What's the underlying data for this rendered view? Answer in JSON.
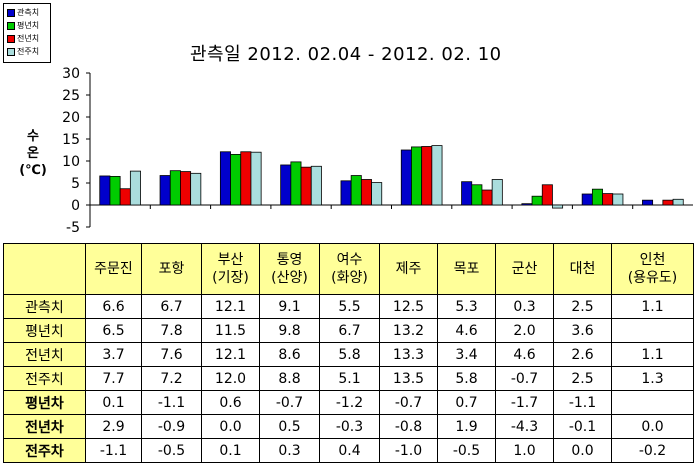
{
  "legend": [
    {
      "name": "관측치",
      "color": "#0000cc"
    },
    {
      "name": "평년치",
      "color": "#00cc00"
    },
    {
      "name": "전년치",
      "color": "#ee0000"
    },
    {
      "name": "전주치",
      "color": "#aadddd"
    }
  ],
  "chart_data": {
    "type": "bar",
    "title": "관측일 2012. 02.04  -  2012. 02. 10",
    "ylabel": "수\n온\n(℃)",
    "ylim": [
      -5,
      30
    ],
    "yticks": [
      -5,
      0,
      5,
      10,
      15,
      20,
      25,
      30
    ],
    "grid": false,
    "legend_position": "top-left",
    "categories": [
      "주문진",
      "포항",
      "부산(기장)",
      "통영(산양)",
      "여수(화양)",
      "제주",
      "목포",
      "군산",
      "대천",
      "인천(용유도)"
    ],
    "series": [
      {
        "name": "관측치",
        "values": [
          6.6,
          6.7,
          12.1,
          9.1,
          5.5,
          12.5,
          5.3,
          0.3,
          2.5,
          1.1
        ]
      },
      {
        "name": "평년치",
        "values": [
          6.5,
          7.8,
          11.5,
          9.8,
          6.7,
          13.2,
          4.6,
          2.0,
          3.6,
          null
        ]
      },
      {
        "name": "전년치",
        "values": [
          3.7,
          7.6,
          12.1,
          8.6,
          5.8,
          13.3,
          3.4,
          4.6,
          2.6,
          1.1
        ]
      },
      {
        "name": "전주치",
        "values": [
          7.7,
          7.2,
          12.0,
          8.8,
          5.1,
          13.5,
          5.8,
          -0.7,
          2.5,
          1.3
        ]
      }
    ]
  },
  "table": {
    "headers": [
      [
        "",
        ""
      ],
      [
        "주문진",
        ""
      ],
      [
        "포항",
        ""
      ],
      [
        "부산",
        "(기장)"
      ],
      [
        "통영",
        "(산양)"
      ],
      [
        "여수",
        "(화양)"
      ],
      [
        "제주",
        ""
      ],
      [
        "목포",
        ""
      ],
      [
        "군산",
        ""
      ],
      [
        "대천",
        ""
      ],
      [
        "인천",
        "(용유도)"
      ]
    ],
    "rows": [
      {
        "label": "관측치",
        "bold": false,
        "cells": [
          "6.6",
          "6.7",
          "12.1",
          "9.1",
          "5.5",
          "12.5",
          "5.3",
          "0.3",
          "2.5",
          "1.1"
        ]
      },
      {
        "label": "평년치",
        "bold": false,
        "cells": [
          "6.5",
          "7.8",
          "11.5",
          "9.8",
          "6.7",
          "13.2",
          "4.6",
          "2.0",
          "3.6",
          ""
        ]
      },
      {
        "label": "전년치",
        "bold": false,
        "cells": [
          "3.7",
          "7.6",
          "12.1",
          "8.6",
          "5.8",
          "13.3",
          "3.4",
          "4.6",
          "2.6",
          "1.1"
        ]
      },
      {
        "label": "전주치",
        "bold": false,
        "cells": [
          "7.7",
          "7.2",
          "12.0",
          "8.8",
          "5.1",
          "13.5",
          "5.8",
          "-0.7",
          "2.5",
          "1.3"
        ]
      },
      {
        "label": "평년차",
        "bold": true,
        "cells": [
          "0.1",
          "-1.1",
          "0.6",
          "-0.7",
          "-1.2",
          "-0.7",
          "0.7",
          "-1.7",
          "-1.1",
          ""
        ]
      },
      {
        "label": "전년차",
        "bold": true,
        "cells": [
          "2.9",
          "-0.9",
          "0.0",
          "0.5",
          "-0.3",
          "-0.8",
          "1.9",
          "-4.3",
          "-0.1",
          "0.0"
        ]
      },
      {
        "label": "전주차",
        "bold": true,
        "cells": [
          "-1.1",
          "-0.5",
          "0.1",
          "0.3",
          "0.4",
          "-1.0",
          "-0.5",
          "1.0",
          "0.0",
          "-0.2"
        ]
      }
    ]
  }
}
